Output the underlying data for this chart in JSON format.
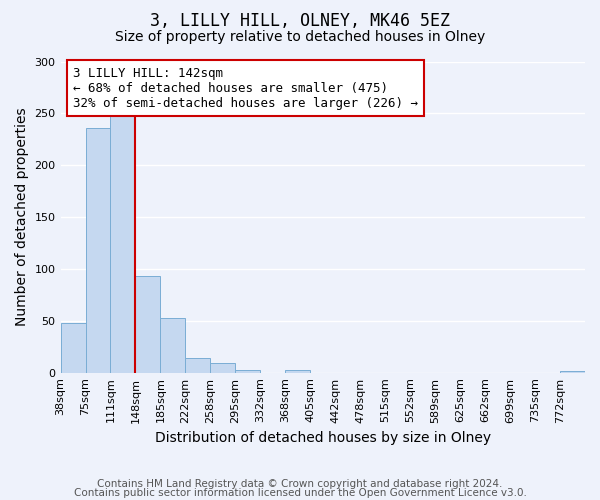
{
  "title": "3, LILLY HILL, OLNEY, MK46 5EZ",
  "subtitle": "Size of property relative to detached houses in Olney",
  "xlabel": "Distribution of detached houses by size in Olney",
  "ylabel": "Number of detached properties",
  "bin_labels": [
    "38sqm",
    "75sqm",
    "111sqm",
    "148sqm",
    "185sqm",
    "222sqm",
    "258sqm",
    "295sqm",
    "332sqm",
    "368sqm",
    "405sqm",
    "442sqm",
    "478sqm",
    "515sqm",
    "552sqm",
    "589sqm",
    "625sqm",
    "662sqm",
    "699sqm",
    "735sqm",
    "772sqm"
  ],
  "bar_heights": [
    48,
    236,
    250,
    93,
    53,
    14,
    9,
    3,
    0,
    3,
    0,
    0,
    0,
    0,
    0,
    0,
    0,
    0,
    0,
    0,
    2
  ],
  "bar_color": "#c5d8f0",
  "bar_edge_color": "#7aadd4",
  "vline_x": 3,
  "vline_color": "#cc0000",
  "annotation_text": "3 LILLY HILL: 142sqm\n← 68% of detached houses are smaller (475)\n32% of semi-detached houses are larger (226) →",
  "annotation_box_color": "#ffffff",
  "annotation_box_edge_color": "#cc0000",
  "ylim": [
    0,
    300
  ],
  "yticks": [
    0,
    50,
    100,
    150,
    200,
    250,
    300
  ],
  "footer_line1": "Contains HM Land Registry data © Crown copyright and database right 2024.",
  "footer_line2": "Contains public sector information licensed under the Open Government Licence v3.0.",
  "background_color": "#eef2fb",
  "grid_color": "#ffffff",
  "title_fontsize": 12,
  "subtitle_fontsize": 10,
  "axis_label_fontsize": 10,
  "tick_fontsize": 8,
  "annotation_fontsize": 9,
  "footer_fontsize": 7.5
}
